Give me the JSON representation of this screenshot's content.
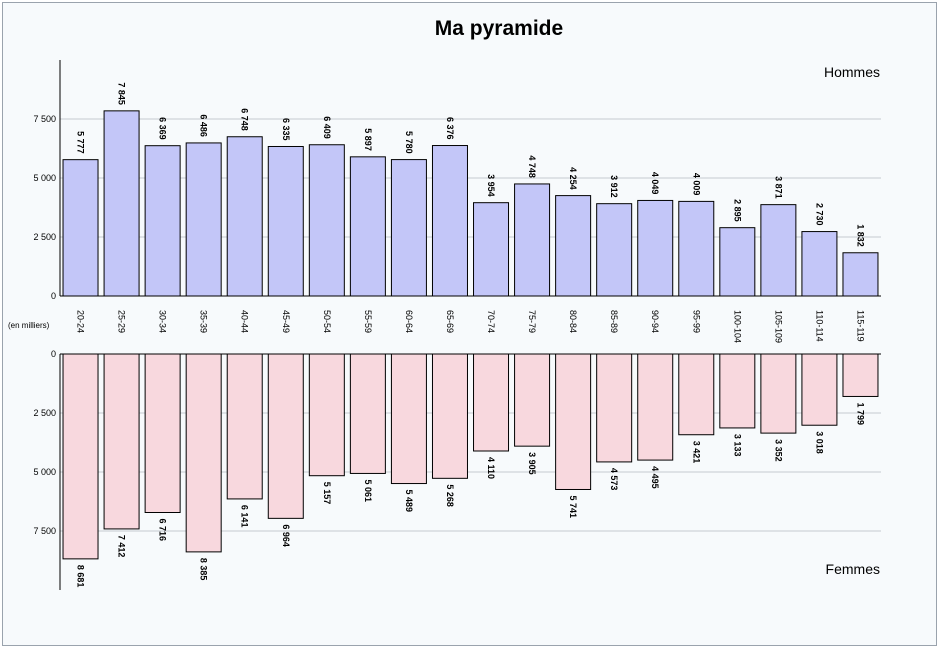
{
  "chart_data": {
    "type": "bar",
    "title": "Ma pyramide",
    "unit_label": "(en milliers)",
    "categories": [
      "20-24",
      "25-29",
      "30-34",
      "35-39",
      "40-44",
      "45-49",
      "50-54",
      "55-59",
      "60-64",
      "65-69",
      "70-74",
      "75-79",
      "80-84",
      "85-89",
      "90-94",
      "95-99",
      "100-104",
      "105-109",
      "110-114",
      "115-119"
    ],
    "series": [
      {
        "name": "Hommes",
        "color": "#c3c6f8",
        "values": [
          5777,
          7845,
          6369,
          6486,
          6748,
          6335,
          6409,
          5897,
          5780,
          6376,
          3954,
          4748,
          4254,
          3912,
          4049,
          4009,
          2895,
          3871,
          2730,
          1832
        ],
        "labels": [
          "5 777",
          "7 845",
          "6 369",
          "6 486",
          "6 748",
          "6 335",
          "6 409",
          "5 897",
          "5 780",
          "6 376",
          "3 954",
          "4 748",
          "4 254",
          "3 912",
          "4 049",
          "4 009",
          "2 895",
          "3 871",
          "2 730",
          "1 832"
        ]
      },
      {
        "name": "Femmes",
        "color": "#f8d8de",
        "values": [
          8681,
          7412,
          6716,
          8385,
          6141,
          6964,
          5157,
          5061,
          5489,
          5268,
          4110,
          3905,
          5741,
          4573,
          4495,
          3421,
          3133,
          3352,
          3018,
          1799
        ],
        "labels": [
          "8 681",
          "7 412",
          "6 716",
          "8 385",
          "6 141",
          "6 964",
          "5 157",
          "5 061",
          "5 489",
          "5 268",
          "4 110",
          "3 905",
          "5 741",
          "4 573",
          "4 495",
          "3 421",
          "3 133",
          "3 352",
          "3 018",
          "1 799"
        ]
      }
    ],
    "y_ticks": [
      0,
      2500,
      5000,
      7500
    ],
    "y_tick_labels": [
      "0",
      "2 500",
      "5 000",
      "7 500"
    ],
    "ylim": [
      0,
      10000
    ],
    "grid": true
  }
}
